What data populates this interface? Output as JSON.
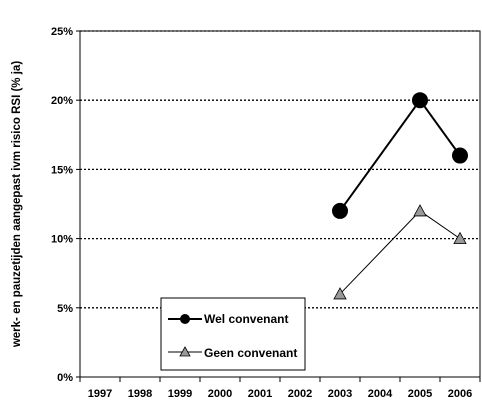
{
  "chart_data": {
    "type": "line",
    "title": "",
    "xlabel": "",
    "ylabel": "werk- en pauzetijden aangepast ivm risico RSI (% ja)",
    "categories": [
      "1997",
      "1998",
      "1999",
      "2000",
      "2001",
      "2002",
      "2003",
      "2004",
      "2005",
      "2006"
    ],
    "yticks": [
      "0%",
      "5%",
      "10%",
      "15%",
      "20%",
      "25%"
    ],
    "ylim": [
      0,
      25
    ],
    "grid": "horizontal dotted",
    "legend_position": "bottom-center",
    "series": [
      {
        "name": "Wel convenant",
        "marker": "circle",
        "color": "#000000",
        "points": [
          {
            "x": "2003",
            "y": 12
          },
          {
            "x": "2005",
            "y": 20
          },
          {
            "x": "2006",
            "y": 16
          }
        ]
      },
      {
        "name": "Geen convenant",
        "marker": "triangle",
        "color": "#000000",
        "marker_fill": "#999999",
        "points": [
          {
            "x": "2003",
            "y": 6
          },
          {
            "x": "2005",
            "y": 12
          },
          {
            "x": "2006",
            "y": 10
          }
        ]
      }
    ]
  }
}
